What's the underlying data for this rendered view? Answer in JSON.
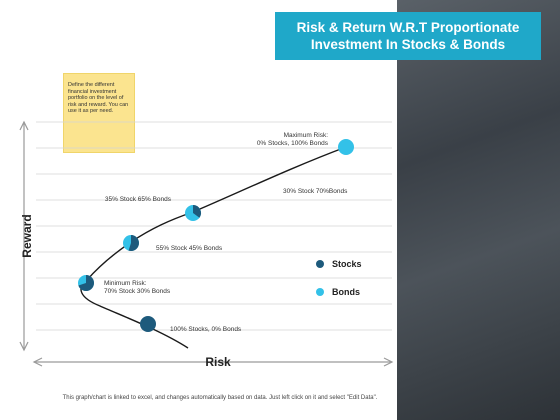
{
  "title": {
    "line1": "Risk & Return W.R.T Proportionate",
    "line2": "Investment In Stocks & Bonds"
  },
  "note": "Define the different financial investment portfolio on the level of risk and reward. You can use it as per need.",
  "footer": "This graph/chart is linked to excel, and changes automatically based on data. Just left click on it and select \"Edit Data\".",
  "colors": {
    "stocks": "#1d5a7c",
    "bonds": "#33c1e8",
    "title_bg": "#1fa8c9",
    "note_bg": "#fbe48f",
    "curve": "#1a1a1a"
  },
  "chart_data": {
    "type": "scatter",
    "xlabel": "Risk",
    "ylabel": "Reward",
    "grid": true,
    "legend_position": "right",
    "legend": [
      {
        "name": "Stocks",
        "color": "#1d5a7c"
      },
      {
        "name": "Bonds",
        "color": "#33c1e8"
      }
    ],
    "points": [
      {
        "label_lines": [
          "100% Stocks, 0% Bonds"
        ],
        "stocks": 100,
        "bonds": 0
      },
      {
        "label_lines": [
          "Minimum Risk:",
          "70% Stock 30% Bonds"
        ],
        "stocks": 70,
        "bonds": 30
      },
      {
        "label_lines": [
          "55% Stock 45% Bonds"
        ],
        "stocks": 55,
        "bonds": 45
      },
      {
        "label_lines": [
          "35% Stock 65% Bonds"
        ],
        "stocks": 35,
        "bonds": 65
      },
      {
        "label_lines": [
          "30% Stock 70%Bonds"
        ],
        "stocks": 30,
        "bonds": 70
      },
      {
        "label_lines": [
          "Maximum Risk:",
          "0% Stocks, 100% Bonds"
        ],
        "stocks": 0,
        "bonds": 100
      }
    ]
  }
}
